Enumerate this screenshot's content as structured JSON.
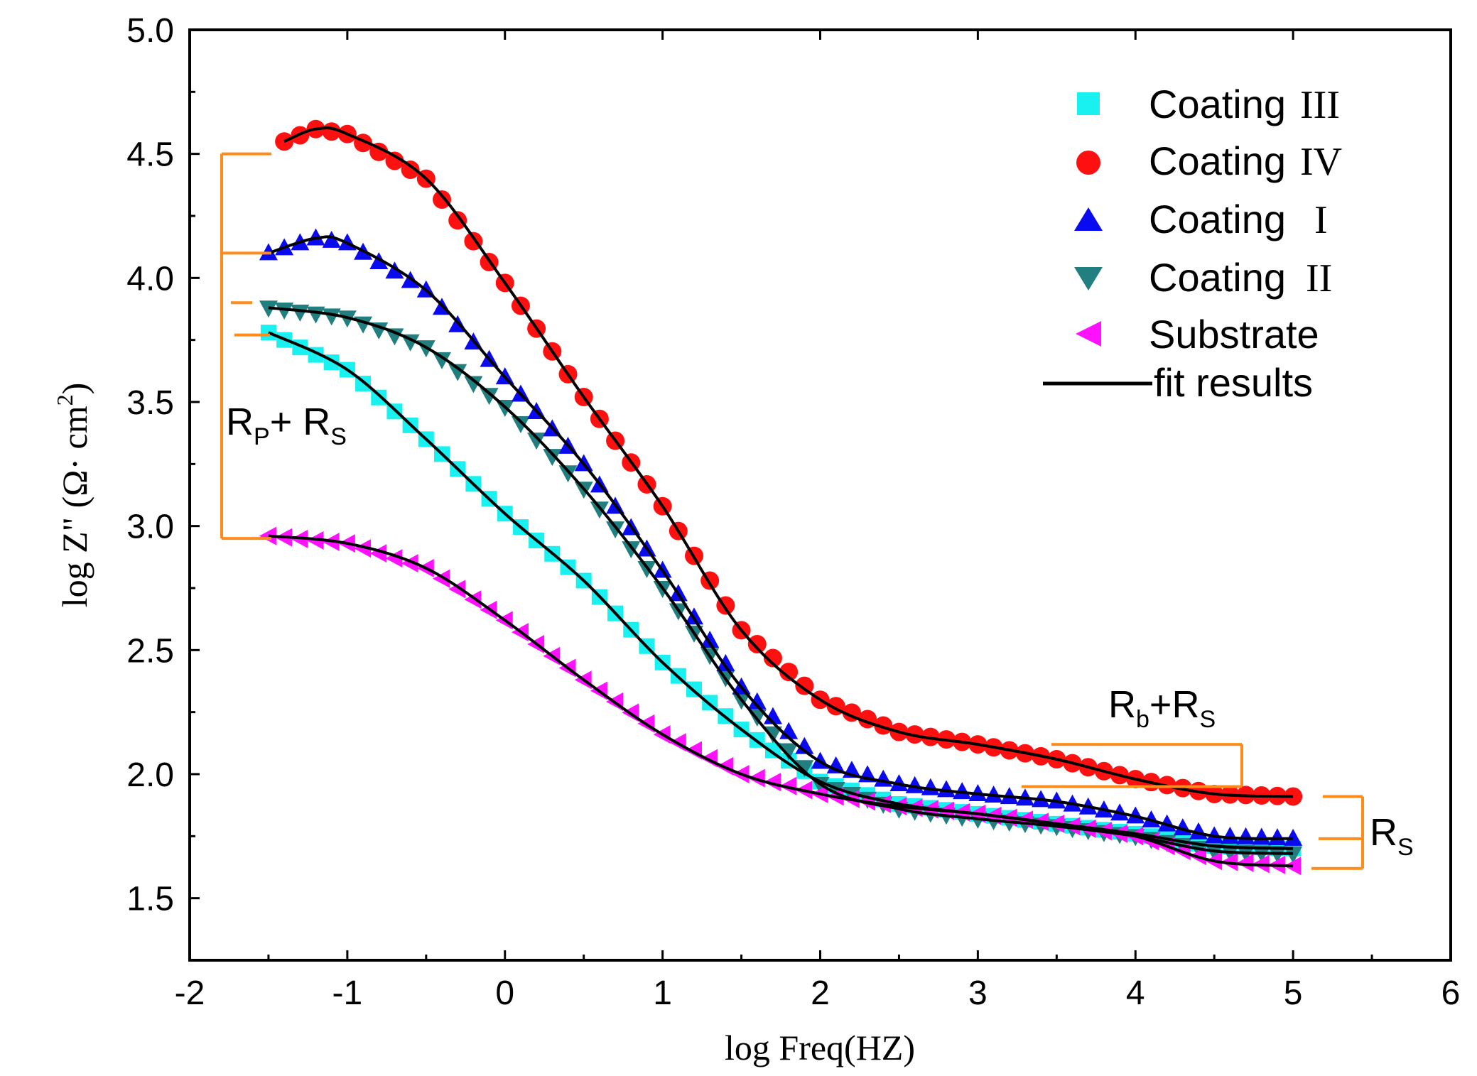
{
  "chart_data": {
    "type": "scatter",
    "xlabel": "log Freq(HZ)",
    "ylabel_parts": {
      "main": "log Z\" (Ω· cm",
      "sup": "2",
      "close": ")"
    },
    "xlim": [
      -2,
      6
    ],
    "ylim": [
      1.25,
      5.0
    ],
    "xticks": [
      "-2",
      "-1",
      "0",
      "1",
      "2",
      "3",
      "4",
      "5",
      "6"
    ],
    "yticks": [
      "1.5",
      "2.0",
      "2.5",
      "3.0",
      "3.5",
      "4.0",
      "4.5",
      "5.0"
    ],
    "legend_position": "top-right",
    "series": [
      {
        "name_main": "Coating",
        "name_roman": "III",
        "marker": "square",
        "color": "#19f0f0",
        "x": [
          -1.5,
          -1.0,
          -0.5,
          0.0,
          0.5,
          1.0,
          1.5,
          2.0,
          2.5,
          3.0,
          3.5,
          4.0,
          4.5,
          5.0
        ],
        "y": [
          3.78,
          3.63,
          3.35,
          3.05,
          2.78,
          2.45,
          2.18,
          1.97,
          1.88,
          1.84,
          1.8,
          1.76,
          1.71,
          1.7
        ]
      },
      {
        "name_main": "Coating",
        "name_roman": "IV",
        "marker": "circle",
        "color": "#ff1010",
        "x": [
          -1.4,
          -1.2,
          -1.0,
          -0.5,
          0.0,
          0.5,
          1.0,
          1.5,
          2.0,
          2.5,
          3.0,
          3.5,
          4.0,
          4.5,
          5.0
        ],
        "y": [
          4.55,
          4.6,
          4.58,
          4.4,
          3.98,
          3.52,
          3.08,
          2.58,
          2.3,
          2.17,
          2.12,
          2.06,
          1.98,
          1.92,
          1.91
        ]
      },
      {
        "name_main": "Coating",
        "name_roman": "I",
        "marker": "triangle-up",
        "color": "#0a0af0",
        "x": [
          -1.5,
          -1.2,
          -1.0,
          -0.5,
          0.0,
          0.5,
          1.0,
          1.5,
          2.0,
          2.5,
          3.0,
          3.5,
          4.0,
          4.5,
          5.0
        ],
        "y": [
          4.1,
          4.16,
          4.14,
          3.95,
          3.6,
          3.25,
          2.82,
          2.35,
          2.05,
          1.96,
          1.92,
          1.89,
          1.83,
          1.75,
          1.74
        ]
      },
      {
        "name_main": "Coating",
        "name_roman": "II",
        "marker": "triangle-down",
        "color": "#227f7f",
        "x": [
          -1.5,
          -1.0,
          -0.5,
          0.0,
          0.5,
          1.0,
          1.5,
          2.0,
          2.5,
          3.0,
          3.5,
          4.0,
          4.5,
          5.0
        ],
        "y": [
          3.88,
          3.84,
          3.72,
          3.48,
          3.15,
          2.75,
          2.3,
          1.96,
          1.86,
          1.82,
          1.79,
          1.75,
          1.69,
          1.68
        ]
      },
      {
        "name_main": "Substrate",
        "name_roman": "",
        "marker": "triangle-left",
        "color": "#ff10ff",
        "x": [
          -1.5,
          -1.0,
          -0.5,
          0.0,
          0.5,
          1.0,
          1.5,
          2.0,
          2.5,
          3.0,
          3.5,
          4.0,
          4.5,
          5.0
        ],
        "y": [
          2.96,
          2.93,
          2.83,
          2.62,
          2.38,
          2.16,
          2.0,
          1.92,
          1.87,
          1.84,
          1.8,
          1.75,
          1.65,
          1.63
        ]
      }
    ],
    "fit_legend_label": "fit results",
    "annotations": {
      "rp_rs": {
        "main": "R",
        "sub1": "P",
        "plus": "+ R",
        "sub2": "S"
      },
      "rb_rs": {
        "main": "R",
        "sub1": "b",
        "plus": "+R",
        "sub2": "S"
      },
      "rs": {
        "main": "R",
        "sub1": "S"
      }
    },
    "colors": {
      "annotation": "#ff8c1a",
      "fit_line": "#000000",
      "axis": "#000000"
    }
  }
}
